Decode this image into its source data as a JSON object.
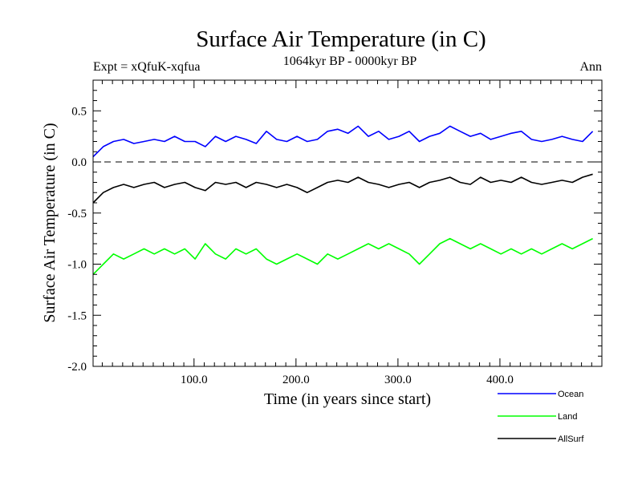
{
  "chart_data": {
    "type": "line",
    "title": "Surface Air Temperature (in C)",
    "subtitle_left": "Expt = xQfuK-xqfua",
    "subtitle_center": "1064kyr BP - 0000kyr BP",
    "subtitle_right": "Ann",
    "xlabel": "Time (in years since start)",
    "ylabel": "Surface Air Temperature (in C)",
    "xlim": [
      1,
      500
    ],
    "ylim": [
      -2.0,
      0.8
    ],
    "x_ticks": [
      100,
      200,
      300,
      400
    ],
    "x_tick_labels": [
      "100.0",
      "200.0",
      "300.0",
      "400.0"
    ],
    "y_ticks": [
      -2.0,
      -1.5,
      -1.0,
      -0.5,
      0.0,
      0.5
    ],
    "y_tick_labels": [
      "-2.0",
      "-1.5",
      "-1.0",
      "-0.5",
      "0.0",
      "0.5"
    ],
    "reference_line": 0.0,
    "series": [
      {
        "name": "Ocean",
        "color": "#0000ff",
        "x_start": 1,
        "x_step": 10,
        "values": [
          0.05,
          0.15,
          0.2,
          0.22,
          0.18,
          0.2,
          0.22,
          0.2,
          0.25,
          0.2,
          0.2,
          0.15,
          0.25,
          0.2,
          0.25,
          0.22,
          0.18,
          0.3,
          0.22,
          0.2,
          0.25,
          0.2,
          0.22,
          0.3,
          0.32,
          0.28,
          0.35,
          0.25,
          0.3,
          0.22,
          0.25,
          0.3,
          0.2,
          0.25,
          0.28,
          0.35,
          0.3,
          0.25,
          0.28,
          0.22,
          0.25,
          0.28,
          0.3,
          0.22,
          0.2,
          0.22,
          0.25,
          0.22,
          0.2,
          0.3
        ]
      },
      {
        "name": "Land",
        "color": "#00ff00",
        "x_start": 1,
        "x_step": 10,
        "values": [
          -1.1,
          -1.0,
          -0.9,
          -0.95,
          -0.9,
          -0.85,
          -0.9,
          -0.85,
          -0.9,
          -0.85,
          -0.95,
          -0.8,
          -0.9,
          -0.95,
          -0.85,
          -0.9,
          -0.85,
          -0.95,
          -1.0,
          -0.95,
          -0.9,
          -0.95,
          -1.0,
          -0.9,
          -0.95,
          -0.9,
          -0.85,
          -0.8,
          -0.85,
          -0.8,
          -0.85,
          -0.9,
          -1.0,
          -0.9,
          -0.8,
          -0.75,
          -0.8,
          -0.85,
          -0.8,
          -0.85,
          -0.9,
          -0.85,
          -0.9,
          -0.85,
          -0.9,
          -0.85,
          -0.8,
          -0.85,
          -0.8,
          -0.75
        ]
      },
      {
        "name": "AllSurf",
        "color": "#000000",
        "x_start": 1,
        "x_step": 10,
        "values": [
          -0.4,
          -0.3,
          -0.25,
          -0.22,
          -0.25,
          -0.22,
          -0.2,
          -0.25,
          -0.22,
          -0.2,
          -0.25,
          -0.28,
          -0.2,
          -0.22,
          -0.2,
          -0.25,
          -0.2,
          -0.22,
          -0.25,
          -0.22,
          -0.25,
          -0.3,
          -0.25,
          -0.2,
          -0.18,
          -0.2,
          -0.15,
          -0.2,
          -0.22,
          -0.25,
          -0.22,
          -0.2,
          -0.25,
          -0.2,
          -0.18,
          -0.15,
          -0.2,
          -0.22,
          -0.15,
          -0.2,
          -0.18,
          -0.2,
          -0.15,
          -0.2,
          -0.22,
          -0.2,
          -0.18,
          -0.2,
          -0.15,
          -0.12
        ]
      }
    ],
    "legend": [
      "Ocean",
      "Land",
      "AllSurf"
    ],
    "legend_position": "bottom-right"
  }
}
